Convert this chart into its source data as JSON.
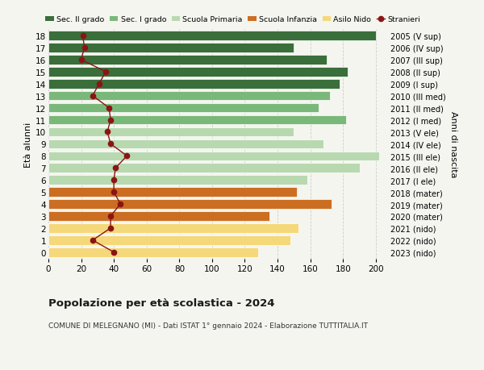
{
  "ages": [
    18,
    17,
    16,
    15,
    14,
    13,
    12,
    11,
    10,
    9,
    8,
    7,
    6,
    5,
    4,
    3,
    2,
    1,
    0
  ],
  "years": [
    "2005 (V sup)",
    "2006 (IV sup)",
    "2007 (III sup)",
    "2008 (II sup)",
    "2009 (I sup)",
    "2010 (III med)",
    "2011 (II med)",
    "2012 (I med)",
    "2013 (V ele)",
    "2014 (IV ele)",
    "2015 (III ele)",
    "2016 (II ele)",
    "2017 (I ele)",
    "2018 (mater)",
    "2019 (mater)",
    "2020 (mater)",
    "2021 (nido)",
    "2022 (nido)",
    "2023 (nido)"
  ],
  "bar_values": [
    200,
    150,
    170,
    183,
    178,
    172,
    165,
    182,
    150,
    168,
    202,
    190,
    158,
    152,
    173,
    135,
    153,
    148,
    128
  ],
  "bar_colors": [
    "#3a6e3a",
    "#3a6e3a",
    "#3a6e3a",
    "#3a6e3a",
    "#3a6e3a",
    "#7ab87a",
    "#7ab87a",
    "#7ab87a",
    "#b8d9b0",
    "#b8d9b0",
    "#b8d9b0",
    "#b8d9b0",
    "#b8d9b0",
    "#cc6e22",
    "#cc6e22",
    "#cc6e22",
    "#f5d87a",
    "#f5d87a",
    "#f5d87a"
  ],
  "stranieri_values": [
    21,
    22,
    20,
    35,
    31,
    27,
    37,
    38,
    36,
    38,
    48,
    41,
    40,
    40,
    44,
    38,
    38,
    27,
    40
  ],
  "stranieri_color": "#8b1414",
  "legend_labels": [
    "Sec. II grado",
    "Sec. I grado",
    "Scuola Primaria",
    "Scuola Infanzia",
    "Asilo Nido",
    "Stranieri"
  ],
  "legend_colors": [
    "#3a6e3a",
    "#7ab87a",
    "#b8d9b0",
    "#cc6e22",
    "#f5d87a",
    "#8b1414"
  ],
  "title": "Popolazione per età scolastica - 2024",
  "subtitle": "COMUNE DI MELEGNANO (MI) - Dati ISTAT 1° gennaio 2024 - Elaborazione TUTTITALIA.IT",
  "ylabel": "Età alunni",
  "right_ylabel": "Anni di nascita",
  "xticks": [
    0,
    20,
    40,
    60,
    80,
    100,
    120,
    140,
    160,
    180,
    200
  ],
  "xlim": [
    0,
    207
  ],
  "ylim": [
    -0.55,
    18.55
  ],
  "bg_color": "#f5f5f0",
  "bar_height": 0.78
}
